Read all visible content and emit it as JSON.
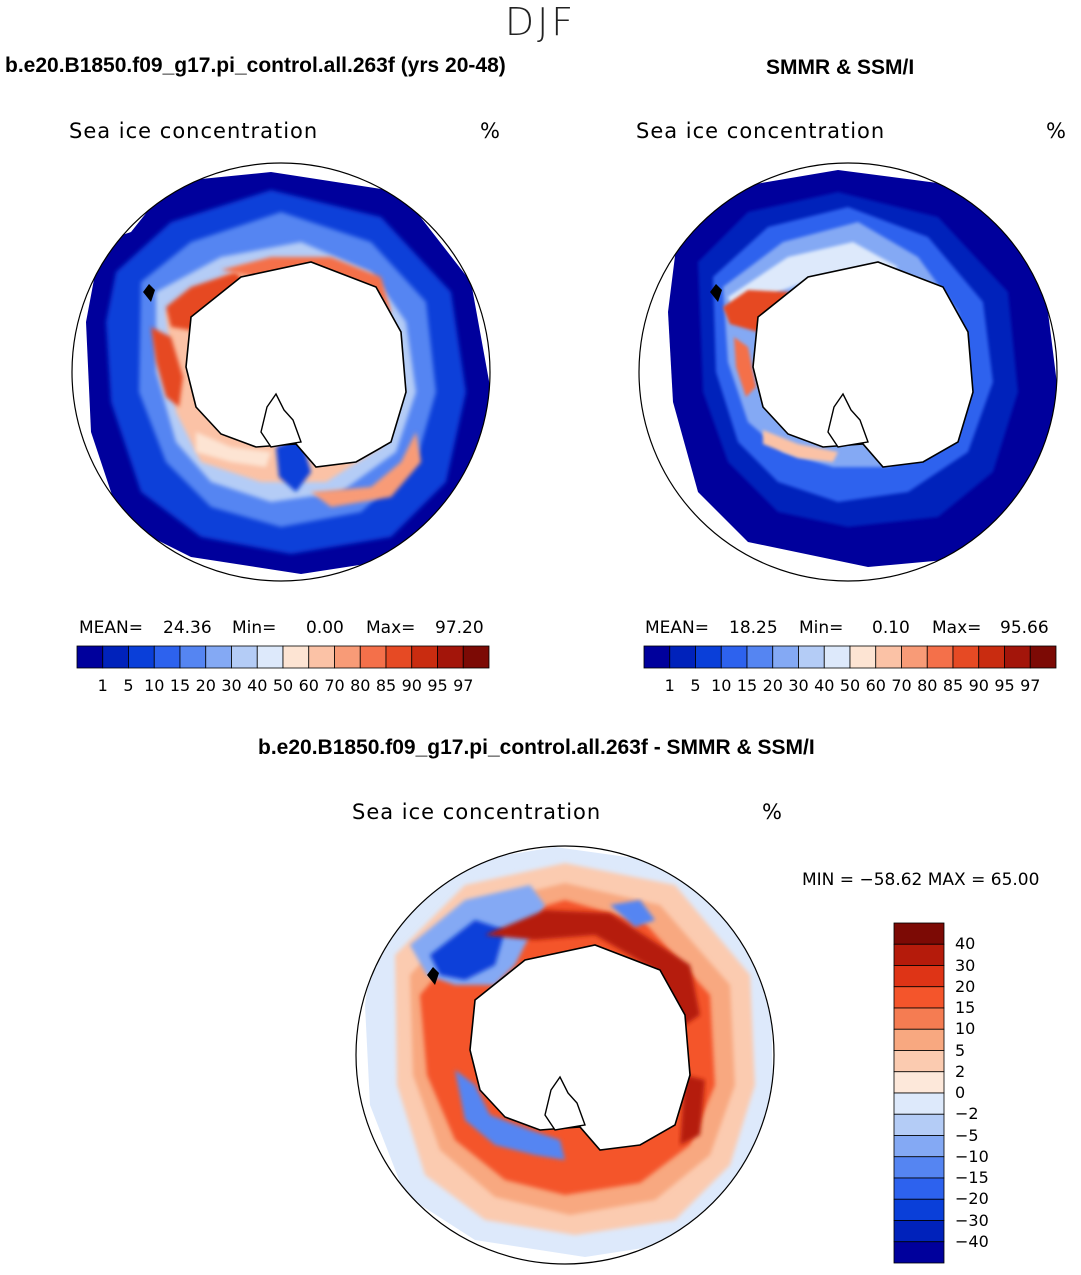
{
  "season": "DJF",
  "panels": {
    "model": {
      "title": "b.e20.B1850.f09_g17.pi_control.all.263f (yrs 20-48)",
      "variable": "Sea ice concentration",
      "units": "%",
      "stats": {
        "mean_label": "MEAN=",
        "mean": "24.36",
        "min_label": "Min=",
        "min": "0.00",
        "max_label": "Max=",
        "max": "97.20"
      }
    },
    "obs": {
      "title": "SMMR & SSM/I",
      "variable": "Sea ice concentration",
      "units": "%",
      "stats": {
        "mean_label": "MEAN=",
        "mean": "18.25",
        "min_label": "Min=",
        "min": "0.10",
        "max_label": "Max=",
        "max": "95.66"
      }
    },
    "diff": {
      "title": "b.e20.B1850.f09_g17.pi_control.all.263f - SMMR & SSM/I",
      "variable": "Sea ice concentration",
      "units": "%",
      "minmax": "MIN = −58.62  MAX =   65.00"
    }
  },
  "colorbar_conc": {
    "levels": [
      "1",
      "5",
      "10",
      "15",
      "20",
      "30",
      "40",
      "50",
      "60",
      "70",
      "80",
      "85",
      "90",
      "95",
      "97"
    ],
    "colors": [
      "#00009c",
      "#0022bb",
      "#0a3fd9",
      "#2d62ee",
      "#5585f2",
      "#84a9f4",
      "#b4ccf6",
      "#dde9fb",
      "#fde4d3",
      "#fbc2a6",
      "#f89b77",
      "#f4704a",
      "#e64a24",
      "#c92c10",
      "#a3150a",
      "#7c0a05"
    ]
  },
  "colorbar_diff": {
    "levels": [
      "40",
      "30",
      "20",
      "15",
      "10",
      "5",
      "2",
      "0",
      "−2",
      "−5",
      "−10",
      "−15",
      "−20",
      "−30",
      "−40"
    ],
    "colors": [
      "#7c0a05",
      "#b51b0b",
      "#de3416",
      "#f4552b",
      "#f57c52",
      "#f8a880",
      "#fbcbb0",
      "#fde8da",
      "#dde9fb",
      "#b4ccf6",
      "#84a9f4",
      "#5585f2",
      "#2d62ee",
      "#0a3fd9",
      "#0022bb",
      "#00009c"
    ]
  }
}
